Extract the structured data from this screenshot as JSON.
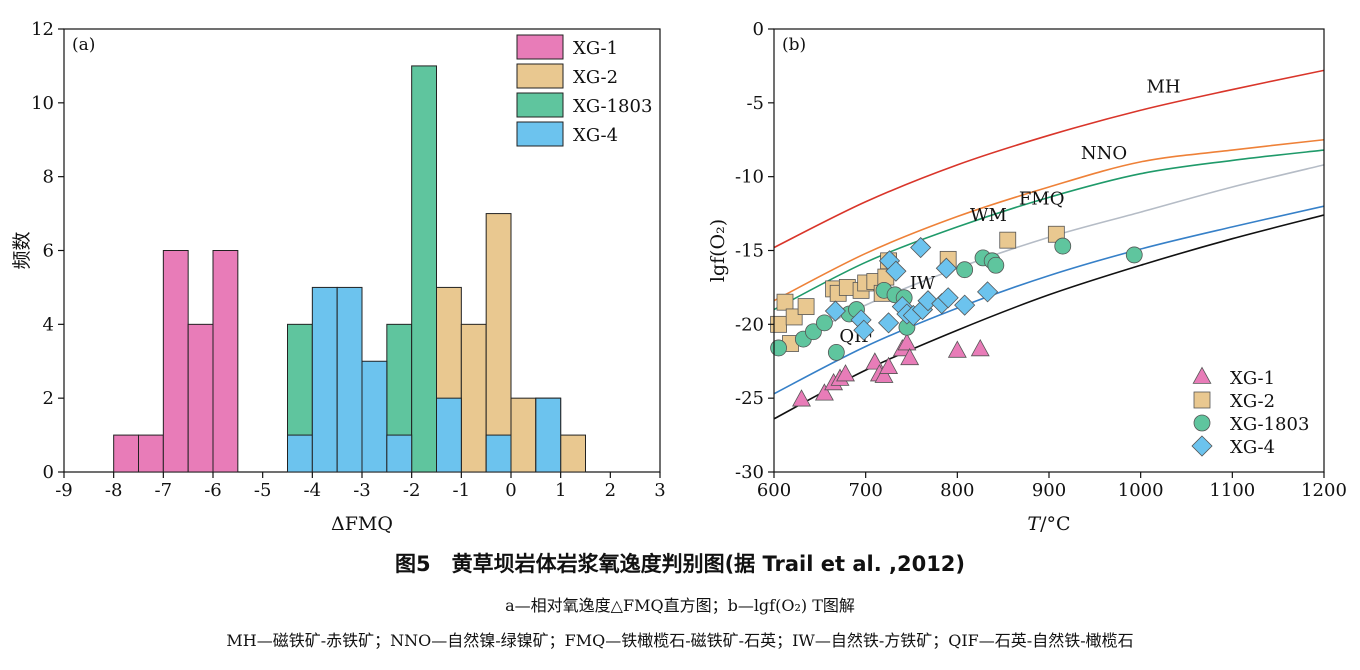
{
  "chart_data": [
    {
      "panel": "(a)",
      "type": "bar",
      "subtype": "histogram",
      "xlabel": "ΔFMQ",
      "ylabel": "频数",
      "xlim": [
        -9,
        3
      ],
      "ylim": [
        0,
        12
      ],
      "xticks": [
        -9,
        -8,
        -7,
        -6,
        -5,
        -4,
        -3,
        -2,
        -1,
        0,
        1,
        2,
        3
      ],
      "yticks": [
        0,
        2,
        4,
        6,
        8,
        10,
        12
      ],
      "bin_width": 0.5,
      "legend_position": "top-right",
      "series": [
        {
          "name": "XG-1",
          "color": "#e87cb8",
          "bins": [
            [
              -8.0,
              1
            ],
            [
              -7.5,
              1
            ],
            [
              -7.0,
              6
            ],
            [
              -6.5,
              4
            ],
            [
              -6.0,
              6
            ]
          ]
        },
        {
          "name": "XG-2",
          "color": "#e9c890",
          "bins": [
            [
              -1.5,
              5
            ],
            [
              -1.0,
              4
            ],
            [
              -0.5,
              7
            ],
            [
              0.0,
              2
            ],
            [
              0.5,
              2
            ],
            [
              1.0,
              1
            ]
          ]
        },
        {
          "name": "XG-1803",
          "color": "#5fc59e",
          "bins": [
            [
              -4.5,
              4
            ],
            [
              -2.5,
              4
            ],
            [
              -2.0,
              11
            ]
          ]
        },
        {
          "name": "XG-4",
          "color": "#6cc3ee",
          "bins": [
            [
              -4.5,
              1
            ],
            [
              -4.0,
              5
            ],
            [
              -3.5,
              5
            ],
            [
              -3.0,
              3
            ],
            [
              -2.5,
              1
            ],
            [
              -1.5,
              2
            ],
            [
              -0.5,
              1
            ],
            [
              0.5,
              2
            ]
          ]
        }
      ]
    },
    {
      "panel": "(b)",
      "type": "scatter",
      "xlabel_var": "T",
      "xlabel_unit": "/°C",
      "ylabel": "lgf(O₂)",
      "xlim": [
        600,
        1200
      ],
      "ylim": [
        -30,
        0
      ],
      "xticks": [
        600,
        700,
        800,
        900,
        1000,
        1100,
        1200
      ],
      "yticks": [
        0,
        -5,
        -10,
        -15,
        -20,
        -25,
        -30
      ],
      "legend_position": "bottom-right",
      "buffers": [
        {
          "name": "MH",
          "color": "#d9352a",
          "label_at": [
            1025,
            -4.3
          ],
          "points": [
            [
              600,
              -14.8
            ],
            [
              700,
              -11.7
            ],
            [
              800,
              -9.2
            ],
            [
              900,
              -7.2
            ],
            [
              1000,
              -5.5
            ],
            [
              1100,
              -4.1
            ],
            [
              1200,
              -2.8
            ]
          ]
        },
        {
          "name": "NNO",
          "color": "#ee8138",
          "label_at": [
            960,
            -8.8
          ],
          "points": [
            [
              600,
              -18.4
            ],
            [
              700,
              -15.2
            ],
            [
              800,
              -12.7
            ],
            [
              900,
              -10.7
            ],
            [
              1000,
              -9.0
            ],
            [
              1100,
              -8.2
            ],
            [
              1200,
              -7.5
            ]
          ]
        },
        {
          "name": "FMQ",
          "color": "#1f9a6a",
          "label_at": [
            892,
            -11.9
          ],
          "points": [
            [
              600,
              -19.0
            ],
            [
              700,
              -15.8
            ],
            [
              800,
              -13.4
            ],
            [
              900,
              -11.4
            ],
            [
              1000,
              -9.8
            ],
            [
              1100,
              -8.9
            ],
            [
              1200,
              -8.2
            ]
          ]
        },
        {
          "name": "WM",
          "color": "#b5bcc6",
          "label_at": [
            834,
            -13.0
          ],
          "points": [
            [
              600,
              -21.9
            ],
            [
              700,
              -18.7
            ],
            [
              800,
              -16.2
            ],
            [
              900,
              -14.1
            ],
            [
              1000,
              -12.4
            ],
            [
              1100,
              -10.7
            ],
            [
              1200,
              -9.2
            ]
          ]
        },
        {
          "name": "IW",
          "color": "#3680c8",
          "label_at": [
            762,
            -17.6
          ],
          "points": [
            [
              600,
              -24.7
            ],
            [
              700,
              -21.5
            ],
            [
              800,
              -18.9
            ],
            [
              900,
              -16.7
            ],
            [
              1000,
              -14.9
            ],
            [
              1100,
              -13.4
            ],
            [
              1200,
              -12.0
            ]
          ]
        },
        {
          "name": "QIF",
          "color": "#111111",
          "label_at": [
            690,
            -21.2
          ],
          "points": [
            [
              600,
              -26.4
            ],
            [
              700,
              -23.1
            ],
            [
              800,
              -20.4
            ],
            [
              900,
              -18.0
            ],
            [
              1000,
              -16.0
            ],
            [
              1100,
              -14.2
            ],
            [
              1200,
              -12.6
            ]
          ]
        }
      ],
      "series": [
        {
          "name": "XG-1",
          "marker": "triangle",
          "color": "#e87cb8",
          "points": [
            [
              630,
              -25.1
            ],
            [
              655,
              -24.7
            ],
            [
              665,
              -24.0
            ],
            [
              672,
              -23.7
            ],
            [
              678,
              -23.4
            ],
            [
              710,
              -22.6
            ],
            [
              715,
              -23.4
            ],
            [
              720,
              -23.5
            ],
            [
              725,
              -22.9
            ],
            [
              740,
              -21.7
            ],
            [
              745,
              -21.3
            ],
            [
              748,
              -22.3
            ],
            [
              800,
              -21.8
            ],
            [
              825,
              -21.7
            ]
          ]
        },
        {
          "name": "XG-2",
          "marker": "square",
          "color": "#e9c890",
          "points": [
            [
              605,
              -20.0
            ],
            [
              612,
              -18.5
            ],
            [
              618,
              -21.3
            ],
            [
              622,
              -19.5
            ],
            [
              635,
              -18.8
            ],
            [
              665,
              -17.6
            ],
            [
              670,
              -17.9
            ],
            [
              680,
              -17.5
            ],
            [
              695,
              -17.7
            ],
            [
              700,
              -17.2
            ],
            [
              710,
              -17.1
            ],
            [
              718,
              -17.9
            ],
            [
              722,
              -16.8
            ],
            [
              725,
              -15.7
            ],
            [
              790,
              -15.6
            ],
            [
              855,
              -14.3
            ],
            [
              908,
              -13.9
            ]
          ]
        },
        {
          "name": "XG-1803",
          "marker": "circle",
          "color": "#5fc59e",
          "points": [
            [
              605,
              -21.6
            ],
            [
              632,
              -21.0
            ],
            [
              643,
              -20.5
            ],
            [
              655,
              -19.9
            ],
            [
              668,
              -21.9
            ],
            [
              682,
              -19.3
            ],
            [
              690,
              -19.0
            ],
            [
              720,
              -17.7
            ],
            [
              732,
              -18.0
            ],
            [
              742,
              -18.2
            ],
            [
              745,
              -20.2
            ],
            [
              808,
              -16.3
            ],
            [
              828,
              -15.5
            ],
            [
              838,
              -15.7
            ],
            [
              842,
              -16.0
            ],
            [
              915,
              -14.7
            ],
            [
              993,
              -15.3
            ]
          ]
        },
        {
          "name": "XG-4",
          "marker": "diamond",
          "color": "#6cc3ee",
          "points": [
            [
              667,
              -19.1
            ],
            [
              695,
              -19.7
            ],
            [
              698,
              -20.4
            ],
            [
              725,
              -19.9
            ],
            [
              726,
              -15.7
            ],
            [
              733,
              -16.4
            ],
            [
              740,
              -18.8
            ],
            [
              745,
              -19.3
            ],
            [
              752,
              -19.4
            ],
            [
              760,
              -14.8
            ],
            [
              762,
              -19.0
            ],
            [
              768,
              -18.4
            ],
            [
              783,
              -18.6
            ],
            [
              788,
              -16.2
            ],
            [
              790,
              -18.2
            ],
            [
              808,
              -18.7
            ],
            [
              833,
              -17.8
            ]
          ]
        }
      ]
    }
  ],
  "caption": {
    "title": "图5　黄草坝岩体岩浆氧逸度判别图(据 Trail et al. ,2012)",
    "subtitle": "a—相对氧逸度△FMQ直方图；b—lgf(O₂) T图解",
    "legend": "MH—磁铁矿-赤铁矿；NNO—自然镍-绿镍矿；FMQ—铁橄榄石-磁铁矿-石英；IW—自然铁-方铁矿；QIF—石英-自然铁-橄榄石"
  }
}
